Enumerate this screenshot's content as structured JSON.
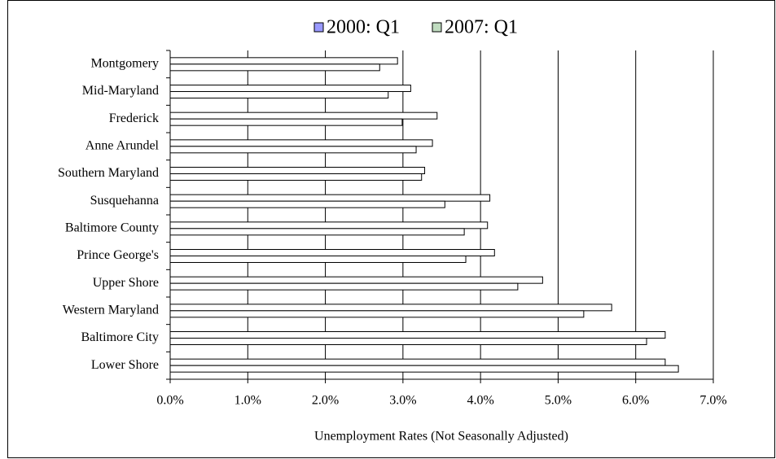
{
  "chart_data": {
    "type": "hbar",
    "xlabel": "Unemployment Rates (Not Seasonally Adjusted)",
    "categories": [
      "Montgomery",
      "Mid-Maryland",
      "Frederick",
      "Anne Arundel",
      "Southern Maryland",
      "Susquehanna",
      "Baltimore County",
      "Prince George's",
      "Upper Shore",
      "Western Maryland",
      "Baltimore City",
      "Lower Shore"
    ],
    "series": [
      {
        "name": "2000: Q1",
        "color": "#9999ff",
        "values": [
          2.93,
          3.1,
          3.44,
          3.38,
          3.28,
          4.12,
          4.09,
          4.18,
          4.8,
          5.69,
          6.38,
          6.38
        ]
      },
      {
        "name": "2007: Q1",
        "color": "#c0dcc0",
        "values": [
          2.7,
          2.81,
          2.99,
          3.17,
          3.24,
          3.54,
          3.79,
          3.81,
          4.48,
          5.33,
          6.14,
          6.55
        ]
      }
    ],
    "bar_fill": "#ffffff",
    "xlim": [
      0,
      7
    ],
    "xticks": [
      {
        "value": 0,
        "label": "0.0%"
      },
      {
        "value": 1,
        "label": "1.0%"
      },
      {
        "value": 2,
        "label": "2.0%"
      },
      {
        "value": 3,
        "label": "3.0%"
      },
      {
        "value": 4,
        "label": "4.0%"
      },
      {
        "value": 5,
        "label": "5.0%"
      },
      {
        "value": 6,
        "label": "6.0%"
      },
      {
        "value": 7,
        "label": "7.0%"
      }
    ],
    "grid": true,
    "legend": "top"
  }
}
